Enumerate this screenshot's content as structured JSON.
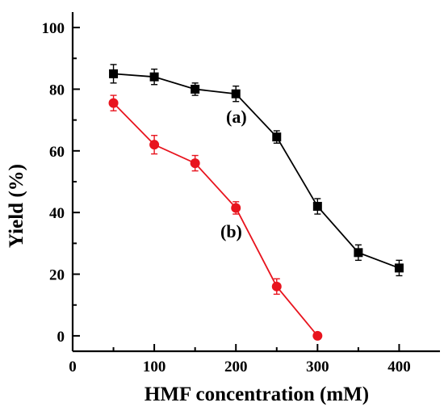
{
  "chart_data": {
    "type": "line",
    "title": "",
    "xlabel": "HMF concentration (mM)",
    "ylabel": "Yield (%)",
    "xlim": [
      0,
      450
    ],
    "ylim": [
      -5,
      105
    ],
    "xticks": [
      0,
      100,
      200,
      300,
      400
    ],
    "yticks": [
      0,
      20,
      40,
      60,
      80,
      100
    ],
    "grid": false,
    "legend": "none",
    "series": [
      {
        "marker": "square",
        "color": "#000000",
        "label": "(a)",
        "x": [
          50,
          100,
          150,
          200,
          250,
          300,
          350,
          400
        ],
        "y": [
          85,
          84,
          80,
          78.5,
          64.5,
          42,
          27,
          22
        ],
        "error": [
          3,
          2.5,
          2,
          2.5,
          2,
          2.5,
          2.5,
          2.5
        ]
      },
      {
        "marker": "circle",
        "color": "#e8141e",
        "label": "(b)",
        "x": [
          50,
          100,
          150,
          200,
          250,
          300
        ],
        "y": [
          75.5,
          62,
          56,
          41.5,
          16,
          0
        ],
        "error": [
          2.5,
          3,
          2.5,
          2,
          2.5,
          0
        ]
      }
    ]
  }
}
